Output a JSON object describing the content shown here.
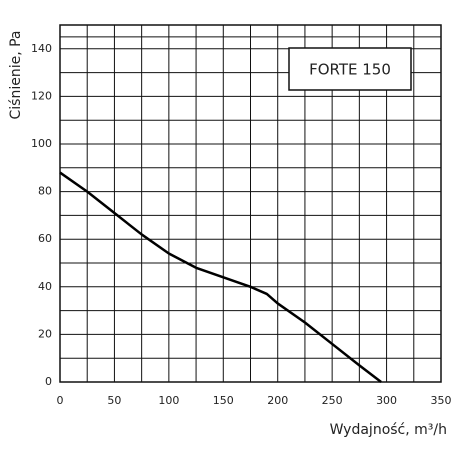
{
  "chart_data": {
    "type": "line",
    "annotation": "FORTE 150",
    "x_label": "Wydajność, m³/h",
    "y_label": "Ciśnienie, Pa",
    "x": [
      0,
      25,
      50,
      75,
      100,
      125,
      150,
      175,
      190,
      200,
      225,
      250,
      275,
      295
    ],
    "series": [
      {
        "name": "FORTE 150",
        "color": "#000000",
        "values": [
          88,
          80,
          71,
          62,
          54,
          48,
          44,
          40,
          37,
          33,
          25,
          16,
          7,
          0
        ]
      }
    ],
    "xlim": [
      0,
      350
    ],
    "xticks": [
      0,
      50,
      100,
      150,
      200,
      250,
      300,
      350
    ],
    "ylim": [
      0,
      150
    ],
    "yticks": [
      0,
      20,
      40,
      60,
      80,
      100,
      120,
      140
    ],
    "grid": true
  }
}
